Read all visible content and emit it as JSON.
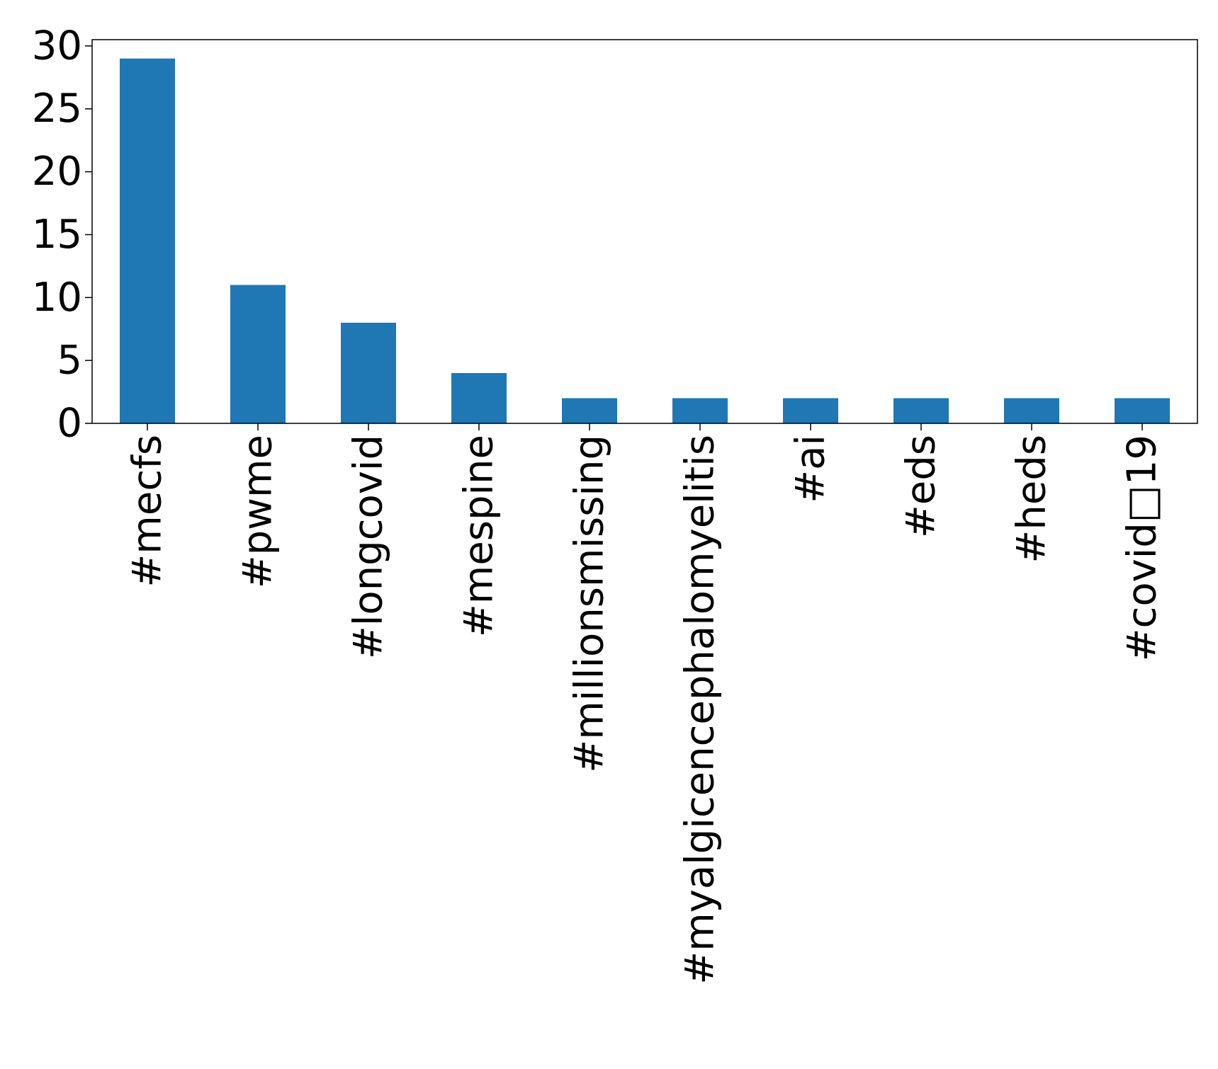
{
  "chart_data": {
    "type": "bar",
    "categories": [
      "#mecfs",
      "#pwme",
      "#longcovid",
      "#mespine",
      "#millionsmissing",
      "#myalgicencephalomyelitis",
      "#ai",
      "#eds",
      "#heds",
      "#covid□19"
    ],
    "values": [
      29,
      11,
      8,
      4,
      2,
      2,
      2,
      2,
      2,
      2
    ],
    "ylim": [
      0,
      30.5
    ],
    "yticks": [
      0,
      5,
      10,
      15,
      20,
      25,
      30
    ],
    "ytick_labels": [
      "0",
      "5",
      "10",
      "15",
      "20",
      "25",
      "30"
    ],
    "title": "",
    "xlabel": "",
    "ylabel": "",
    "grid": false,
    "legend": "none",
    "bar_color": "#1f77b4",
    "frame_color": "#000000"
  }
}
